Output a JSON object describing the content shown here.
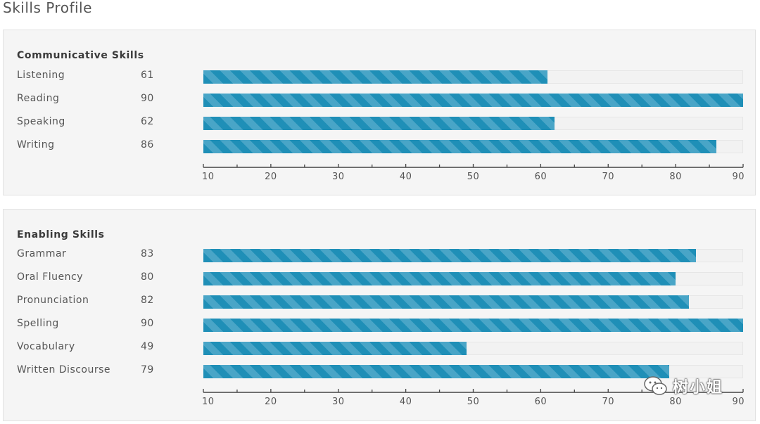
{
  "page_title": "Skills Profile",
  "chart_data": [
    {
      "type": "bar",
      "orientation": "horizontal",
      "title": "Communicative Skills",
      "categories": [
        "Listening",
        "Reading",
        "Speaking",
        "Writing"
      ],
      "values": [
        61,
        90,
        62,
        86
      ],
      "xlim": [
        10,
        90
      ],
      "xticks": [
        10,
        20,
        30,
        40,
        50,
        60,
        70,
        80,
        90
      ],
      "bar_color": "#1f8fb7",
      "stripe_color": "#49a5c7"
    },
    {
      "type": "bar",
      "orientation": "horizontal",
      "title": "Enabling Skills",
      "categories": [
        "Grammar",
        "Oral Fluency",
        "Pronunciation",
        "Spelling",
        "Vocabulary",
        "Written Discourse"
      ],
      "values": [
        83,
        80,
        82,
        90,
        49,
        79
      ],
      "xlim": [
        10,
        90
      ],
      "xticks": [
        10,
        20,
        30,
        40,
        50,
        60,
        70,
        80,
        90
      ],
      "bar_color": "#1f8fb7",
      "stripe_color": "#49a5c7"
    }
  ],
  "watermark": {
    "icon": "wechat-icon",
    "text": "树小姐"
  }
}
